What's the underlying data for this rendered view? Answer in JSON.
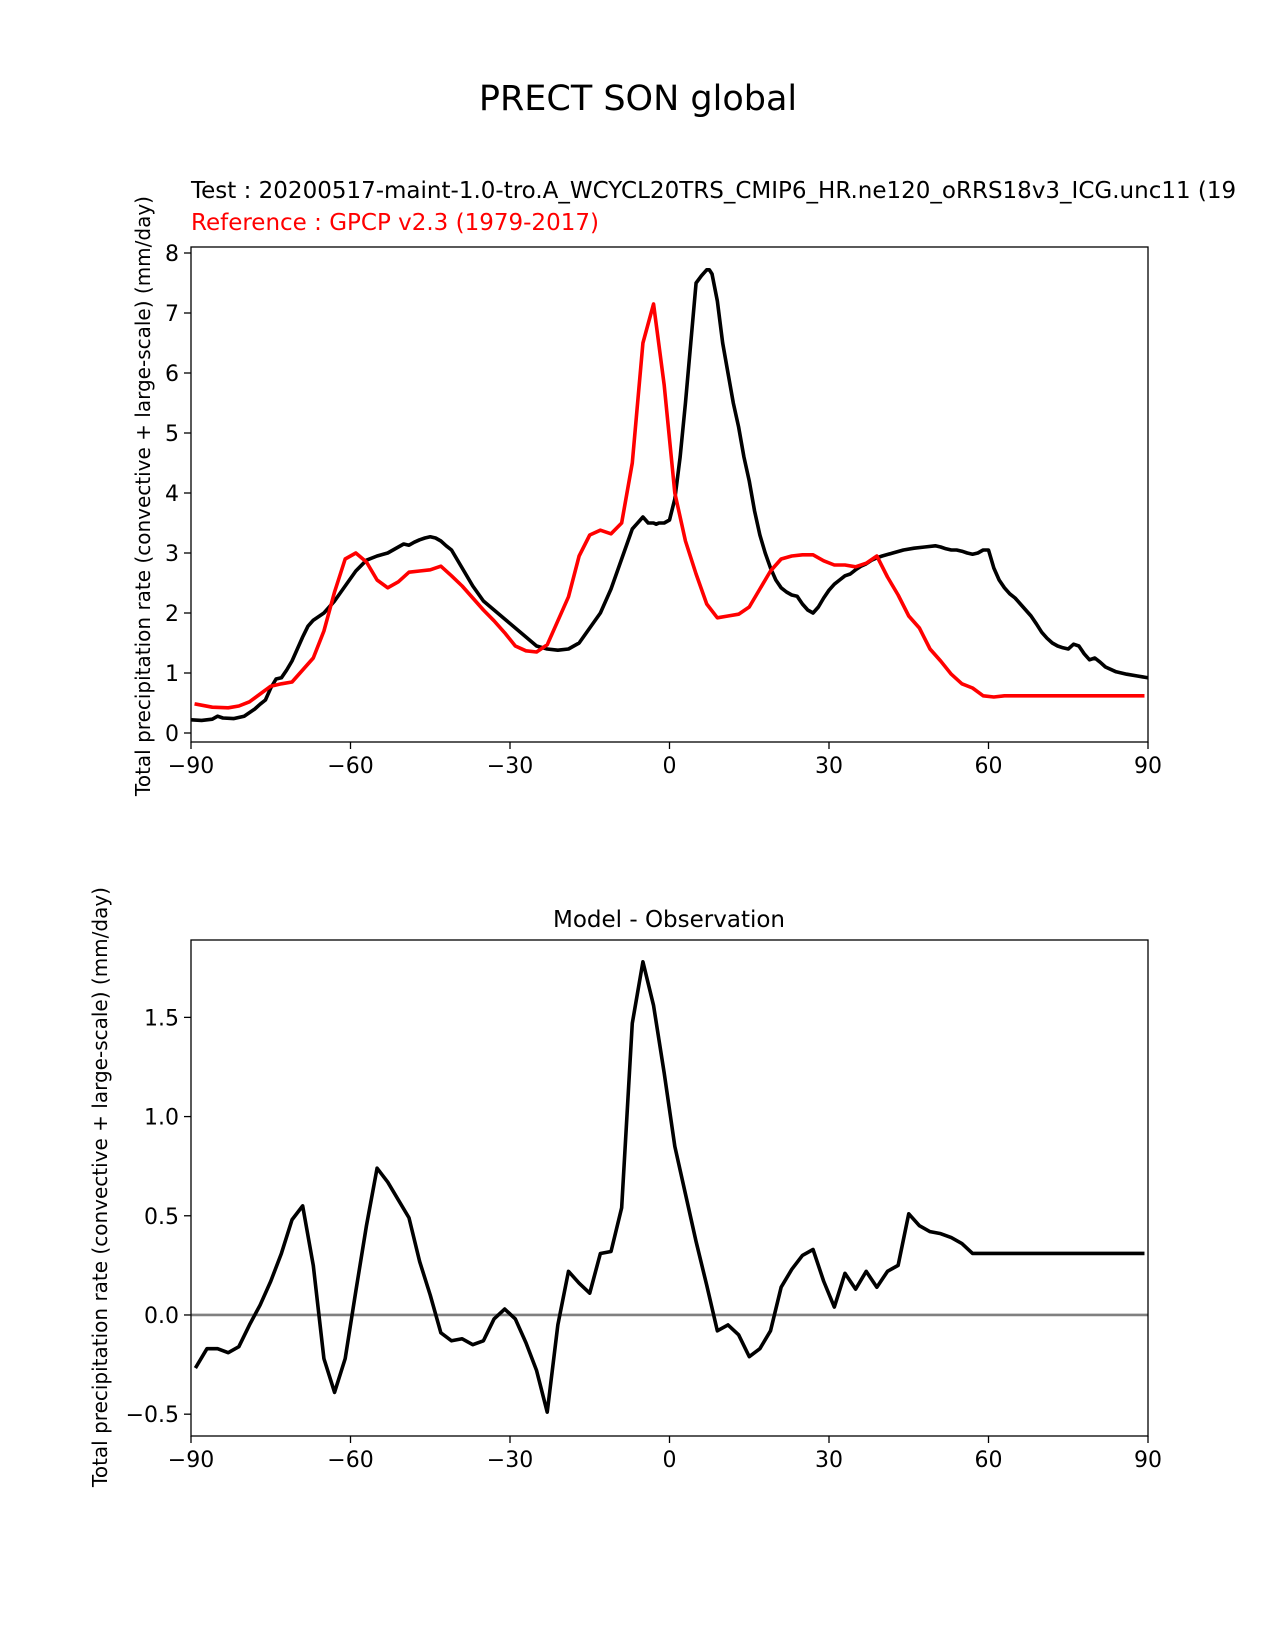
{
  "figure": {
    "suptitle": "PRECT SON global"
  },
  "chart_data": [
    {
      "type": "line",
      "test_label": "Test : 20200517-maint-1.0-tro.A_WCYCL20TRS_CMIP6_HR.ne120_oRRS18v3_ICG.unc11 (19",
      "ref_label": "Reference : GPCP v2.3 (1979-2017)",
      "ylabel": "Total precipitation rate (convective + large-scale) (mm/day)",
      "xlim": [
        -90,
        90
      ],
      "ylim": [
        -0.15,
        8.1
      ],
      "xticks": [
        "−90",
        "−60",
        "−30",
        "0",
        "30",
        "60",
        "90"
      ],
      "yticks": [
        "0",
        "1",
        "2",
        "3",
        "4",
        "5",
        "6",
        "7",
        "8"
      ],
      "series": [
        {
          "role": "test",
          "color": "#000000",
          "x": [
            -90,
            -88,
            -86,
            -85,
            -84,
            -82,
            -80,
            -78,
            -77,
            -76,
            -75,
            -74,
            -73,
            -72,
            -71,
            -70,
            -69,
            -68,
            -67,
            -65,
            -63,
            -61,
            -59,
            -57,
            -55,
            -53,
            -51,
            -50,
            -49,
            -48,
            -47,
            -46,
            -45,
            -44,
            -43,
            -42,
            -41,
            -40,
            -39,
            -37,
            -35,
            -33,
            -31,
            -29,
            -27,
            -25,
            -23,
            -21,
            -19,
            -17,
            -15,
            -13,
            -11,
            -9,
            -7,
            -5,
            -4,
            -3,
            -2.5,
            -2,
            -1,
            0,
            1,
            2,
            3,
            4,
            5,
            6,
            7,
            7.5,
            8,
            9,
            10,
            11,
            12,
            13,
            14,
            15,
            16,
            17,
            18,
            19,
            20,
            21,
            22,
            23,
            24,
            25,
            26,
            27,
            28,
            29,
            30,
            31,
            32,
            33,
            34,
            35,
            36,
            37,
            38,
            39,
            40,
            42,
            44,
            46,
            48,
            50,
            51,
            52,
            53,
            54,
            55,
            56,
            57,
            58,
            59,
            60,
            61,
            62,
            63,
            64,
            65,
            66,
            67,
            68,
            69,
            70,
            71,
            72,
            73,
            74,
            75,
            76,
            77,
            78,
            79,
            80,
            81,
            82,
            84,
            86,
            88,
            90
          ],
          "y": [
            0.22,
            0.21,
            0.23,
            0.28,
            0.25,
            0.24,
            0.28,
            0.4,
            0.48,
            0.55,
            0.75,
            0.9,
            0.92,
            1.05,
            1.2,
            1.4,
            1.6,
            1.78,
            1.88,
            2.0,
            2.2,
            2.45,
            2.7,
            2.88,
            2.95,
            3.0,
            3.1,
            3.15,
            3.13,
            3.18,
            3.22,
            3.25,
            3.27,
            3.25,
            3.2,
            3.12,
            3.05,
            2.9,
            2.75,
            2.45,
            2.2,
            2.05,
            1.9,
            1.75,
            1.6,
            1.45,
            1.4,
            1.38,
            1.4,
            1.5,
            1.75,
            2.0,
            2.4,
            2.9,
            3.4,
            3.6,
            3.5,
            3.5,
            3.48,
            3.5,
            3.5,
            3.55,
            3.9,
            4.6,
            5.5,
            6.5,
            7.5,
            7.62,
            7.72,
            7.72,
            7.65,
            7.2,
            6.5,
            6.0,
            5.5,
            5.1,
            4.6,
            4.2,
            3.7,
            3.3,
            3.0,
            2.75,
            2.55,
            2.42,
            2.35,
            2.3,
            2.28,
            2.15,
            2.05,
            2.0,
            2.1,
            2.25,
            2.38,
            2.48,
            2.55,
            2.62,
            2.65,
            2.72,
            2.78,
            2.82,
            2.88,
            2.92,
            2.95,
            3.0,
            3.05,
            3.08,
            3.1,
            3.12,
            3.1,
            3.07,
            3.05,
            3.05,
            3.03,
            3.0,
            2.98,
            3.0,
            3.05,
            3.05,
            2.75,
            2.55,
            2.42,
            2.32,
            2.25,
            2.15,
            2.05,
            1.95,
            1.82,
            1.68,
            1.58,
            1.5,
            1.45,
            1.42,
            1.4,
            1.48,
            1.45,
            1.32,
            1.22,
            1.25,
            1.18,
            1.1,
            1.02,
            0.98,
            0.95,
            0.92
          ]
        },
        {
          "role": "reference",
          "color": "#ff0000",
          "x": [
            -89,
            -86,
            -83,
            -81,
            -79,
            -77,
            -75,
            -73,
            -71,
            -69,
            -67,
            -65,
            -63,
            -61,
            -59,
            -57,
            -55,
            -53,
            -51,
            -49,
            -47,
            -45,
            -43,
            -41,
            -39,
            -37,
            -35,
            -33,
            -31,
            -29,
            -27,
            -25,
            -23,
            -21,
            -19,
            -17,
            -15,
            -13,
            -11,
            -9,
            -7,
            -5,
            -3,
            -1,
            1,
            3,
            5,
            7,
            9,
            11,
            13,
            15,
            17,
            19,
            21,
            23,
            25,
            27,
            29,
            31,
            33,
            35,
            37,
            39,
            41,
            43,
            45,
            47,
            49,
            51,
            53,
            55,
            57,
            59,
            61,
            63,
            65,
            67,
            69,
            71,
            73,
            75,
            77,
            79,
            81,
            83,
            85,
            87,
            89
          ],
          "y": [
            0.48,
            0.43,
            0.42,
            0.45,
            0.52,
            0.65,
            0.78,
            0.82,
            0.85,
            1.05,
            1.25,
            1.7,
            2.35,
            2.9,
            3.0,
            2.85,
            2.55,
            2.42,
            2.52,
            2.68,
            2.7,
            2.72,
            2.78,
            2.62,
            2.45,
            2.25,
            2.05,
            1.87,
            1.67,
            1.45,
            1.37,
            1.35,
            1.47,
            1.87,
            2.27,
            2.95,
            3.3,
            3.38,
            3.32,
            3.5,
            4.5,
            6.5,
            7.15,
            5.8,
            4.0,
            3.2,
            2.65,
            2.15,
            1.92,
            1.95,
            1.98,
            2.1,
            2.4,
            2.7,
            2.9,
            2.95,
            2.97,
            2.97,
            2.87,
            2.8,
            2.8,
            2.77,
            2.83,
            2.95,
            2.6,
            2.3,
            1.95,
            1.75,
            1.4,
            1.2,
            0.98,
            0.82,
            0.75,
            0.62,
            0.6,
            0.62,
            0.62,
            0.62,
            0.62,
            0.62,
            0.62,
            0.62,
            0.62,
            0.62,
            0.62,
            0.62,
            0.62,
            0.62,
            0.62
          ]
        }
      ]
    },
    {
      "type": "line",
      "title": "Model - Observation",
      "ylabel": "Total precipitation rate (convective + large-scale) (mm/day)",
      "xlim": [
        -90,
        90
      ],
      "ylim": [
        -0.61,
        1.89
      ],
      "xticks": [
        "−90",
        "−60",
        "−30",
        "0",
        "30",
        "60",
        "90"
      ],
      "yticks": [
        "−0.5",
        "0.0",
        "0.5",
        "1.0",
        "1.5"
      ],
      "zero_line": true,
      "series": [
        {
          "role": "difference",
          "color": "#000000",
          "x": [
            -89,
            -87,
            -85,
            -83,
            -81,
            -79,
            -77,
            -75,
            -73,
            -71,
            -69,
            -67,
            -65,
            -63,
            -61,
            -59,
            -57,
            -55,
            -53,
            -51,
            -49,
            -47,
            -45,
            -43,
            -41,
            -39,
            -37,
            -35,
            -33,
            -31,
            -29,
            -27,
            -25,
            -23,
            -21,
            -19,
            -17,
            -15,
            -13,
            -11,
            -9,
            -7,
            -5,
            -3,
            -1,
            1,
            3,
            5,
            7,
            9,
            11,
            13,
            15,
            17,
            19,
            21,
            23,
            25,
            27,
            29,
            31,
            33,
            35,
            37,
            39,
            41,
            43,
            45,
            47,
            49,
            51,
            53,
            55,
            57,
            59,
            61,
            63,
            65,
            67,
            69,
            71,
            73,
            75,
            77,
            79,
            81,
            83,
            85,
            87,
            89
          ],
          "y": [
            -0.26,
            -0.17,
            -0.17,
            -0.19,
            -0.16,
            -0.05,
            0.05,
            0.17,
            0.31,
            0.48,
            0.55,
            0.25,
            -0.22,
            -0.39,
            -0.22,
            0.12,
            0.45,
            0.74,
            0.67,
            0.58,
            0.49,
            0.27,
            0.1,
            -0.09,
            -0.13,
            -0.12,
            -0.15,
            -0.13,
            -0.02,
            0.03,
            -0.02,
            -0.14,
            -0.28,
            -0.49,
            -0.05,
            0.22,
            0.16,
            0.11,
            0.31,
            0.32,
            0.54,
            1.47,
            1.78,
            1.56,
            1.22,
            0.85,
            0.61,
            0.37,
            0.15,
            -0.08,
            -0.05,
            -0.1,
            -0.21,
            -0.17,
            -0.08,
            0.14,
            0.23,
            0.3,
            0.33,
            0.17,
            0.04,
            0.21,
            0.13,
            0.22,
            0.14,
            0.22,
            0.25,
            0.51,
            0.45,
            0.42,
            0.41,
            0.39,
            0.36,
            0.31,
            0.31,
            0.31,
            0.31,
            0.31,
            0.31,
            0.31,
            0.31,
            0.31,
            0.31,
            0.31,
            0.31,
            0.31,
            0.31,
            0.31,
            0.31,
            0.31
          ]
        }
      ]
    }
  ]
}
